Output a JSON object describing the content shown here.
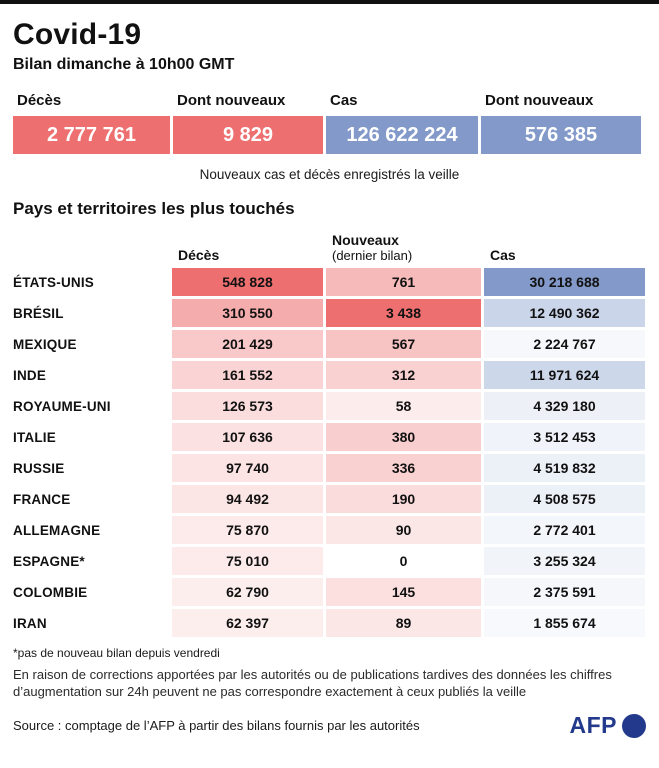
{
  "colors": {
    "deaths_base": "#ee6f6f",
    "cases_base": "#8299c9",
    "logo_blue": "#233a8c",
    "top_border": "#111111"
  },
  "header": {
    "title": "Covid-19",
    "subtitle": "Bilan dimanche à 10h00 GMT"
  },
  "summary": {
    "cells": [
      {
        "label": "Décès",
        "value": "2 777 761",
        "bg": "#ee6f6f"
      },
      {
        "label": "Dont nouveaux",
        "value": "9 829",
        "bg": "#ee6f6f"
      },
      {
        "label": "Cas",
        "value": "126 622 224",
        "bg": "#8299c9"
      },
      {
        "label": "Dont nouveaux",
        "value": "576 385",
        "bg": "#8299c9"
      }
    ],
    "caption": "Nouveaux cas et décès enregistrés la veille"
  },
  "table": {
    "title": "Pays et territoires les plus touchés",
    "headers": {
      "deces": "Décès",
      "nouveaux": "Nouveaux",
      "nouveaux_sub": "(dernier bilan)",
      "cas": "Cas"
    },
    "rows": [
      {
        "country": "ÉTATS-UNIS",
        "deces": "548 828",
        "nouveaux": "761",
        "cas": "30 218 688",
        "deces_bg": "#ee6f6f",
        "nouveaux_bg": "#f7baba",
        "cas_bg": "#8299c9"
      },
      {
        "country": "BRÉSIL",
        "deces": "310 550",
        "nouveaux": "3 438",
        "cas": "12 490 362",
        "deces_bg": "#f5acac",
        "nouveaux_bg": "#ee6f6f",
        "cas_bg": "#cbd5e9"
      },
      {
        "country": "MEXIQUE",
        "deces": "201 429",
        "nouveaux": "567",
        "cas": "2 224 767",
        "deces_bg": "#f9c9c9",
        "nouveaux_bg": "#f8c3c3",
        "cas_bg": "#f6f8fb"
      },
      {
        "country": "INDE",
        "deces": "161 552",
        "nouveaux": "312",
        "cas": "11 971 624",
        "deces_bg": "#fad4d4",
        "nouveaux_bg": "#fad1d1",
        "cas_bg": "#cdd7ea"
      },
      {
        "country": "ROYAUME-UNI",
        "deces": "126 573",
        "nouveaux": "58",
        "cas": "4 329 180",
        "deces_bg": "#fbdddd",
        "nouveaux_bg": "#fdecec",
        "cas_bg": "#edf0f7"
      },
      {
        "country": "ITALIE",
        "deces": "107 636",
        "nouveaux": "380",
        "cas": "3 512 453",
        "deces_bg": "#fbe1e1",
        "nouveaux_bg": "#f9cece",
        "cas_bg": "#f0f3f9"
      },
      {
        "country": "RUSSIE",
        "deces": "97 740",
        "nouveaux": "336",
        "cas": "4 519 832",
        "deces_bg": "#fce4e4",
        "nouveaux_bg": "#fad1d1",
        "cas_bg": "#ecf0f7"
      },
      {
        "country": "FRANCE",
        "deces": "94 492",
        "nouveaux": "190",
        "cas": "4 508 575",
        "deces_bg": "#fce5e5",
        "nouveaux_bg": "#fbdcdc",
        "cas_bg": "#ecf0f7"
      },
      {
        "country": "ALLEMAGNE",
        "deces": "75 870",
        "nouveaux": "90",
        "cas": "2 772 401",
        "deces_bg": "#fdeaea",
        "nouveaux_bg": "#fce7e7",
        "cas_bg": "#f3f6fa"
      },
      {
        "country": "ESPAGNE*",
        "deces": "75 010",
        "nouveaux": "0",
        "cas": "3 255 324",
        "deces_bg": "#fdeaea",
        "nouveaux_bg": "#ffffff",
        "cas_bg": "#f1f4f9"
      },
      {
        "country": "COLOMBIE",
        "deces": "62 790",
        "nouveaux": "145",
        "cas": "2 375 591",
        "deces_bg": "#fdeeee",
        "nouveaux_bg": "#fce0e0",
        "cas_bg": "#f5f7fb"
      },
      {
        "country": "IRAN",
        "deces": "62 397",
        "nouveaux": "89",
        "cas": "1 855 674",
        "deces_bg": "#fdeeee",
        "nouveaux_bg": "#fce7e7",
        "cas_bg": "#f7f9fc"
      }
    ]
  },
  "chart_data": {
    "type": "table",
    "title": "Pays et territoires les plus touchés",
    "subtitle": "Bilan dimanche à 10h00 GMT",
    "columns": [
      "Décès",
      "Nouveaux (dernier bilan)",
      "Cas"
    ],
    "totals": {
      "deces": 2777761,
      "deces_nouveaux": 9829,
      "cas": 126622224,
      "cas_nouveaux": 576385
    },
    "rows": [
      {
        "country": "ÉTATS-UNIS",
        "deces": 548828,
        "nouveaux": 761,
        "cas": 30218688
      },
      {
        "country": "BRÉSIL",
        "deces": 310550,
        "nouveaux": 3438,
        "cas": 12490362
      },
      {
        "country": "MEXIQUE",
        "deces": 201429,
        "nouveaux": 567,
        "cas": 2224767
      },
      {
        "country": "INDE",
        "deces": 161552,
        "nouveaux": 312,
        "cas": 11971624
      },
      {
        "country": "ROYAUME-UNI",
        "deces": 126573,
        "nouveaux": 58,
        "cas": 4329180
      },
      {
        "country": "ITALIE",
        "deces": 107636,
        "nouveaux": 380,
        "cas": 3512453
      },
      {
        "country": "RUSSIE",
        "deces": 97740,
        "nouveaux": 336,
        "cas": 4519832
      },
      {
        "country": "FRANCE",
        "deces": 94492,
        "nouveaux": 190,
        "cas": 4508575
      },
      {
        "country": "ALLEMAGNE",
        "deces": 75870,
        "nouveaux": 90,
        "cas": 2772401
      },
      {
        "country": "ESPAGNE*",
        "deces": 75010,
        "nouveaux": 0,
        "cas": 3255324
      },
      {
        "country": "COLOMBIE",
        "deces": 62790,
        "nouveaux": 145,
        "cas": 2375591
      },
      {
        "country": "IRAN",
        "deces": 62397,
        "nouveaux": 89,
        "cas": 1855674
      }
    ],
    "heatmap": {
      "deaths_base": "#ee6f6f",
      "cases_base": "#8299c9",
      "background": "#ffffff"
    },
    "legend_position": "none",
    "grid": false
  },
  "footnote": "*pas de nouveau bilan depuis vendredi",
  "note": "En raison de corrections apportées par les autorités ou de publications tardives des données les chiffres d’augmentation sur 24h peuvent ne pas correspondre exactement à ceux publiés la veille",
  "source": "Source : comptage de l’AFP à partir des bilans fournis par les autorités",
  "logo": {
    "text": "AFP"
  }
}
